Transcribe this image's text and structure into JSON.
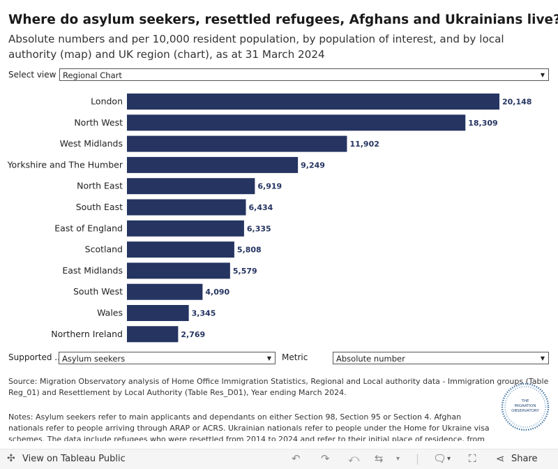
{
  "header": {
    "title": "Where do asylum seekers, resettled refugees, Afghans and Ukrainians live?",
    "subtitle": "Absolute numbers and per 10,000 resident population, by population of interest, and by local authority (map) and UK region (chart), as at 31 March 2024"
  },
  "controls": {
    "view_label": "Select view",
    "view_value": "Regional Chart",
    "supported_label": "Supported ...",
    "supported_value": "Asylum seekers",
    "metric_label": "Metric",
    "metric_value": "Absolute number"
  },
  "chart_data": {
    "type": "bar",
    "orientation": "horizontal",
    "categories": [
      "London",
      "North West",
      "West Midlands",
      "Yorkshire and The Humber",
      "North East",
      "South East",
      "East of England",
      "Scotland",
      "East Midlands",
      "South West",
      "Wales",
      "Northern Ireland"
    ],
    "values": [
      20148,
      18309,
      11902,
      9249,
      6919,
      6434,
      6335,
      5808,
      5579,
      4090,
      3345,
      2769
    ],
    "value_labels": [
      "20,148",
      "18,309",
      "11,902",
      "9,249",
      "6,919",
      "6,434",
      "6,335",
      "5,808",
      "5,579",
      "4,090",
      "3,345",
      "2,769"
    ],
    "title": "",
    "xlabel": "",
    "ylabel": "",
    "xlim": [
      0,
      20148
    ],
    "bar_color": "#253461",
    "grid": false
  },
  "footer_text": {
    "source": "Source: Migration Observatory analysis of Home Office Immigration Statistics, Regional and Local authority data - Immigration groups (Table Reg_01) and Resettlement by Local Authority (Table Res_D01), Year ending March 2024.",
    "notes": "Notes: Asylum seekers refer to main applicants and dependants on either Section 98, Section 95 or Section 4. Afghan nationals refer to people arriving through ARAP or ACRS. Ukrainian nationals refer to people under the Home for Ukraine visa schemes. The data include refugees who were resettled from 2014 to 2024 and refer to their initial place of residence, from which they may have since left.",
    "logo_line1": "THE",
    "logo_line2": "MIGRATION",
    "logo_line3": "OBSERVATORY"
  },
  "toolbar": {
    "view_on_tableau": "View on Tableau Public",
    "share": "Share"
  }
}
